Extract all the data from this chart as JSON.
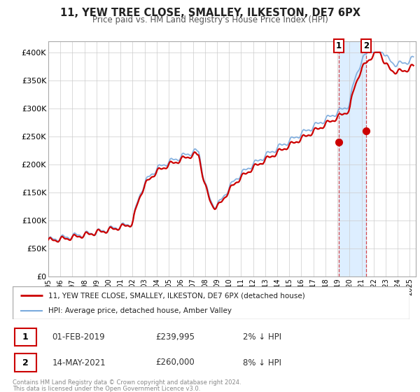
{
  "title": "11, YEW TREE CLOSE, SMALLEY, ILKESTON, DE7 6PX",
  "subtitle": "Price paid vs. HM Land Registry's House Price Index (HPI)",
  "ylim": [
    0,
    420000
  ],
  "yticks": [
    0,
    50000,
    100000,
    150000,
    200000,
    250000,
    300000,
    350000,
    400000
  ],
  "ytick_labels": [
    "£0",
    "£50K",
    "£100K",
    "£150K",
    "£200K",
    "£250K",
    "£300K",
    "£350K",
    "£400K"
  ],
  "xlim_start": 1995.0,
  "xlim_end": 2025.5,
  "transaction1_date": 2019.083,
  "transaction1_price": 239995,
  "transaction2_date": 2021.37,
  "transaction2_price": 260000,
  "legend_label1": "11, YEW TREE CLOSE, SMALLEY, ILKESTON, DE7 6PX (detached house)",
  "legend_label2": "HPI: Average price, detached house, Amber Valley",
  "annotation1_date": "01-FEB-2019",
  "annotation1_price": "£239,995",
  "annotation1_pct": "2% ↓ HPI",
  "annotation2_date": "14-MAY-2021",
  "annotation2_price": "£260,000",
  "annotation2_pct": "8% ↓ HPI",
  "footer1": "Contains HM Land Registry data © Crown copyright and database right 2024.",
  "footer2": "This data is licensed under the Open Government Licence v3.0.",
  "bg_color": "#ffffff",
  "grid_color": "#cccccc",
  "highlight_bg": "#ddeeff",
  "hpi_color": "#7aaadd",
  "price_color": "#cc0000"
}
